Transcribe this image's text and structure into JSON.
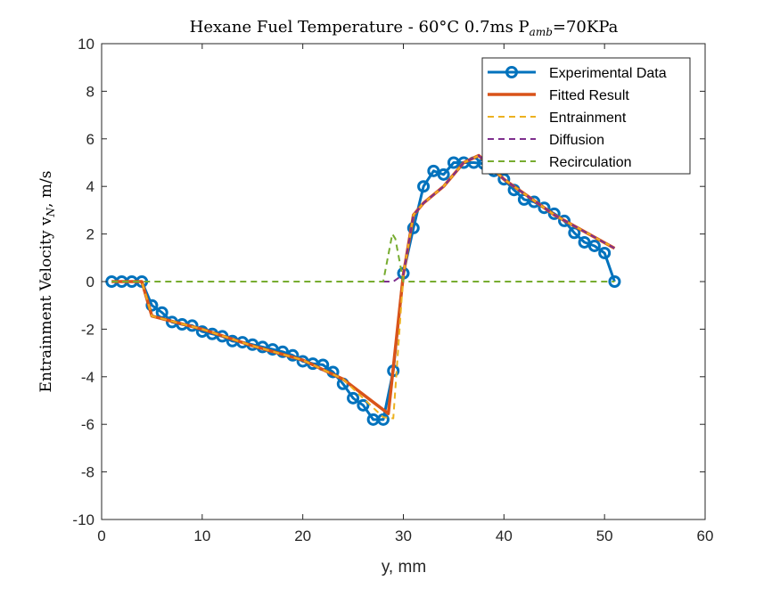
{
  "chart_data": {
    "type": "line",
    "title": "Hexane Fuel Temperature - 60°C 0.7ms P",
    "title_subscript": "amb",
    "title_suffix": "=70KPa",
    "xlabel": "y, mm",
    "ylabel": "Entrainment Velocity v",
    "ylabel_subscript": "N",
    "ylabel_suffix": ", m/s",
    "xlim": [
      0,
      60
    ],
    "ylim": [
      -10,
      10
    ],
    "xticks": [
      "0",
      "10",
      "20",
      "30",
      "40",
      "50",
      "60"
    ],
    "yticks": [
      "-10",
      "-8",
      "-6",
      "-4",
      "-2",
      "0",
      "2",
      "4",
      "6",
      "8",
      "10"
    ],
    "grid": false,
    "legend_position": "top-right",
    "series": [
      {
        "name": "Experimental Data",
        "color": "#0072BD",
        "style": "solid-marker-circle",
        "x": [
          1,
          2,
          3,
          4,
          5,
          6,
          7,
          8,
          9,
          10,
          11,
          12,
          13,
          14,
          15,
          16,
          17,
          18,
          19,
          20,
          21,
          22,
          23,
          24,
          25,
          26,
          27,
          28,
          29,
          30,
          31,
          32,
          33,
          34,
          35,
          36,
          37,
          38,
          39,
          40,
          41,
          42,
          43,
          44,
          45,
          46,
          47,
          48,
          49,
          50,
          51
        ],
        "y": [
          0,
          0,
          0,
          0,
          -1.0,
          -1.3,
          -1.7,
          -1.8,
          -1.85,
          -2.1,
          -2.2,
          -2.3,
          -2.5,
          -2.55,
          -2.65,
          -2.75,
          -2.85,
          -2.95,
          -3.1,
          -3.35,
          -3.45,
          -3.5,
          -3.8,
          -4.3,
          -4.9,
          -5.2,
          -5.8,
          -5.8,
          -3.75,
          0.35,
          2.25,
          4.0,
          4.65,
          4.5,
          5.0,
          5.0,
          5.0,
          4.95,
          4.65,
          4.3,
          3.85,
          3.45,
          3.35,
          3.1,
          2.85,
          2.55,
          2.05,
          1.65,
          1.5,
          1.2,
          0
        ]
      },
      {
        "name": "Fitted Result",
        "color": "#D95319",
        "style": "solid-thick",
        "x": [
          1,
          4,
          5,
          10,
          15,
          20,
          24,
          28.5,
          30,
          31,
          32,
          34,
          36,
          37.5,
          40,
          45,
          51
        ],
        "y": [
          0,
          0,
          -1.45,
          -2.0,
          -2.7,
          -3.3,
          -4.1,
          -5.55,
          0.3,
          2.8,
          3.3,
          4.0,
          5.0,
          5.3,
          4.3,
          2.8,
          1.4
        ]
      },
      {
        "name": "Entrainment",
        "color": "#EDB120",
        "style": "dashed",
        "x": [
          1,
          4,
          5,
          10,
          15,
          20,
          24,
          28,
          29,
          30,
          31,
          32,
          34,
          36,
          37.5,
          40,
          45,
          51
        ],
        "y": [
          0,
          0,
          -1.45,
          -2.0,
          -2.7,
          -3.3,
          -4.1,
          -5.7,
          -5.75,
          0.3,
          2.8,
          3.3,
          4.0,
          5.0,
          5.3,
          4.3,
          2.8,
          1.4
        ]
      },
      {
        "name": "Diffusion",
        "color": "#7E2F8E",
        "style": "dashed",
        "x": [
          28,
          29,
          30,
          31,
          32,
          34,
          36,
          37.5,
          40,
          45,
          51
        ],
        "y": [
          0,
          0,
          0.3,
          2.8,
          3.3,
          4.0,
          5.0,
          5.3,
          4.3,
          2.8,
          1.4
        ]
      },
      {
        "name": "Recirculation",
        "color": "#77AC30",
        "style": "dashed",
        "x": [
          1,
          28,
          28.9,
          29.2,
          30,
          51
        ],
        "y": [
          0,
          0,
          2.0,
          1.8,
          0,
          0
        ]
      }
    ]
  }
}
